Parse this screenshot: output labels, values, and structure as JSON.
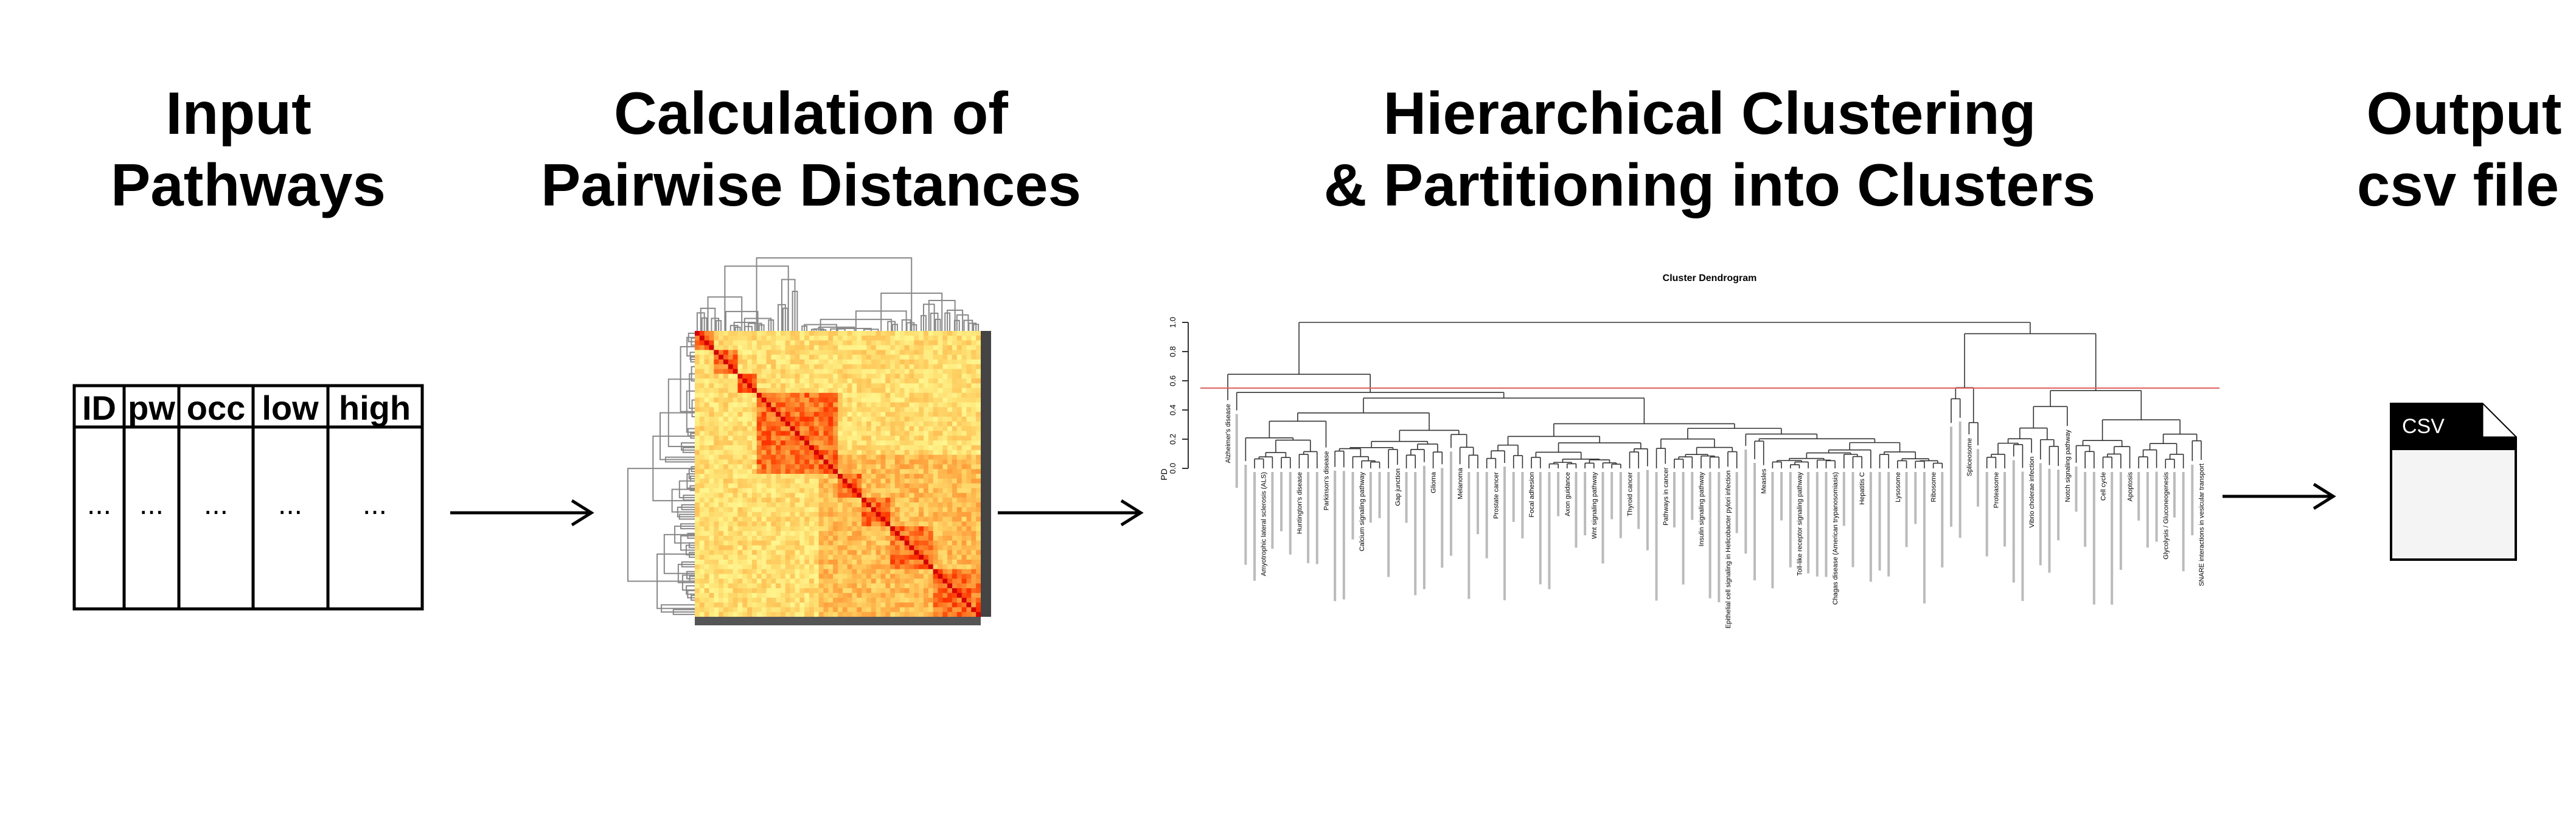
{
  "stages": [
    {
      "title_lines": [
        "Input",
        "Pathways"
      ]
    },
    {
      "title_lines": [
        "Calculation of",
        "Pairwise Distances"
      ]
    },
    {
      "title_lines": [
        "Hierarchical Clustering",
        "& Partitioning into Clusters"
      ]
    },
    {
      "title_lines": [
        "Output",
        "csv file"
      ]
    }
  ],
  "table": {
    "headers": [
      "ID",
      "pw",
      "occ",
      "low",
      "high"
    ],
    "rows": [
      [
        "...",
        "...",
        "...",
        "...",
        "..."
      ]
    ]
  },
  "dendrogram": {
    "title": "Cluster Dendrogram",
    "y_label": "PD",
    "ylim": [
      0,
      1
    ],
    "yticks": [
      {
        "value": 0,
        "label": "0.0"
      },
      0.2,
      0.4,
      0.6,
      0.8,
      {
        "value": 1,
        "label": "1.0"
      }
    ],
    "cut_height": 0.55,
    "leaf_labels": [
      "Alzheimer's disease",
      "Amyotrophic lateral sclerosis (ALS)",
      "Huntington's disease",
      "Parkinson's disease",
      "Calcium signaling pathway",
      "Gap junction",
      "Glioma",
      "Melanoma",
      "Prostate cancer",
      "Focal adhesion",
      "Axon guidance",
      "Wnt signaling pathway",
      "Thyroid cancer",
      "Pathways in cancer",
      "Insulin signaling pathway",
      "Epithelial cell signaling in Helicobacter pylori infection",
      "Measles",
      "Toll-like receptor signaling pathway",
      "Chagas disease (American trypanosomiasis)",
      "Hepatitis C",
      "Lysosome",
      "Ribosome",
      "Spliceosome",
      "Proteasome",
      "Vibrio cholerae infection",
      "Notch signaling pathway",
      "Cell cycle",
      "Apoptosis",
      "Glycolysis / Gluconeogenesis",
      "SNARE interactions in vesicular transport"
    ]
  },
  "output": {
    "icon_label": "CSV"
  }
}
